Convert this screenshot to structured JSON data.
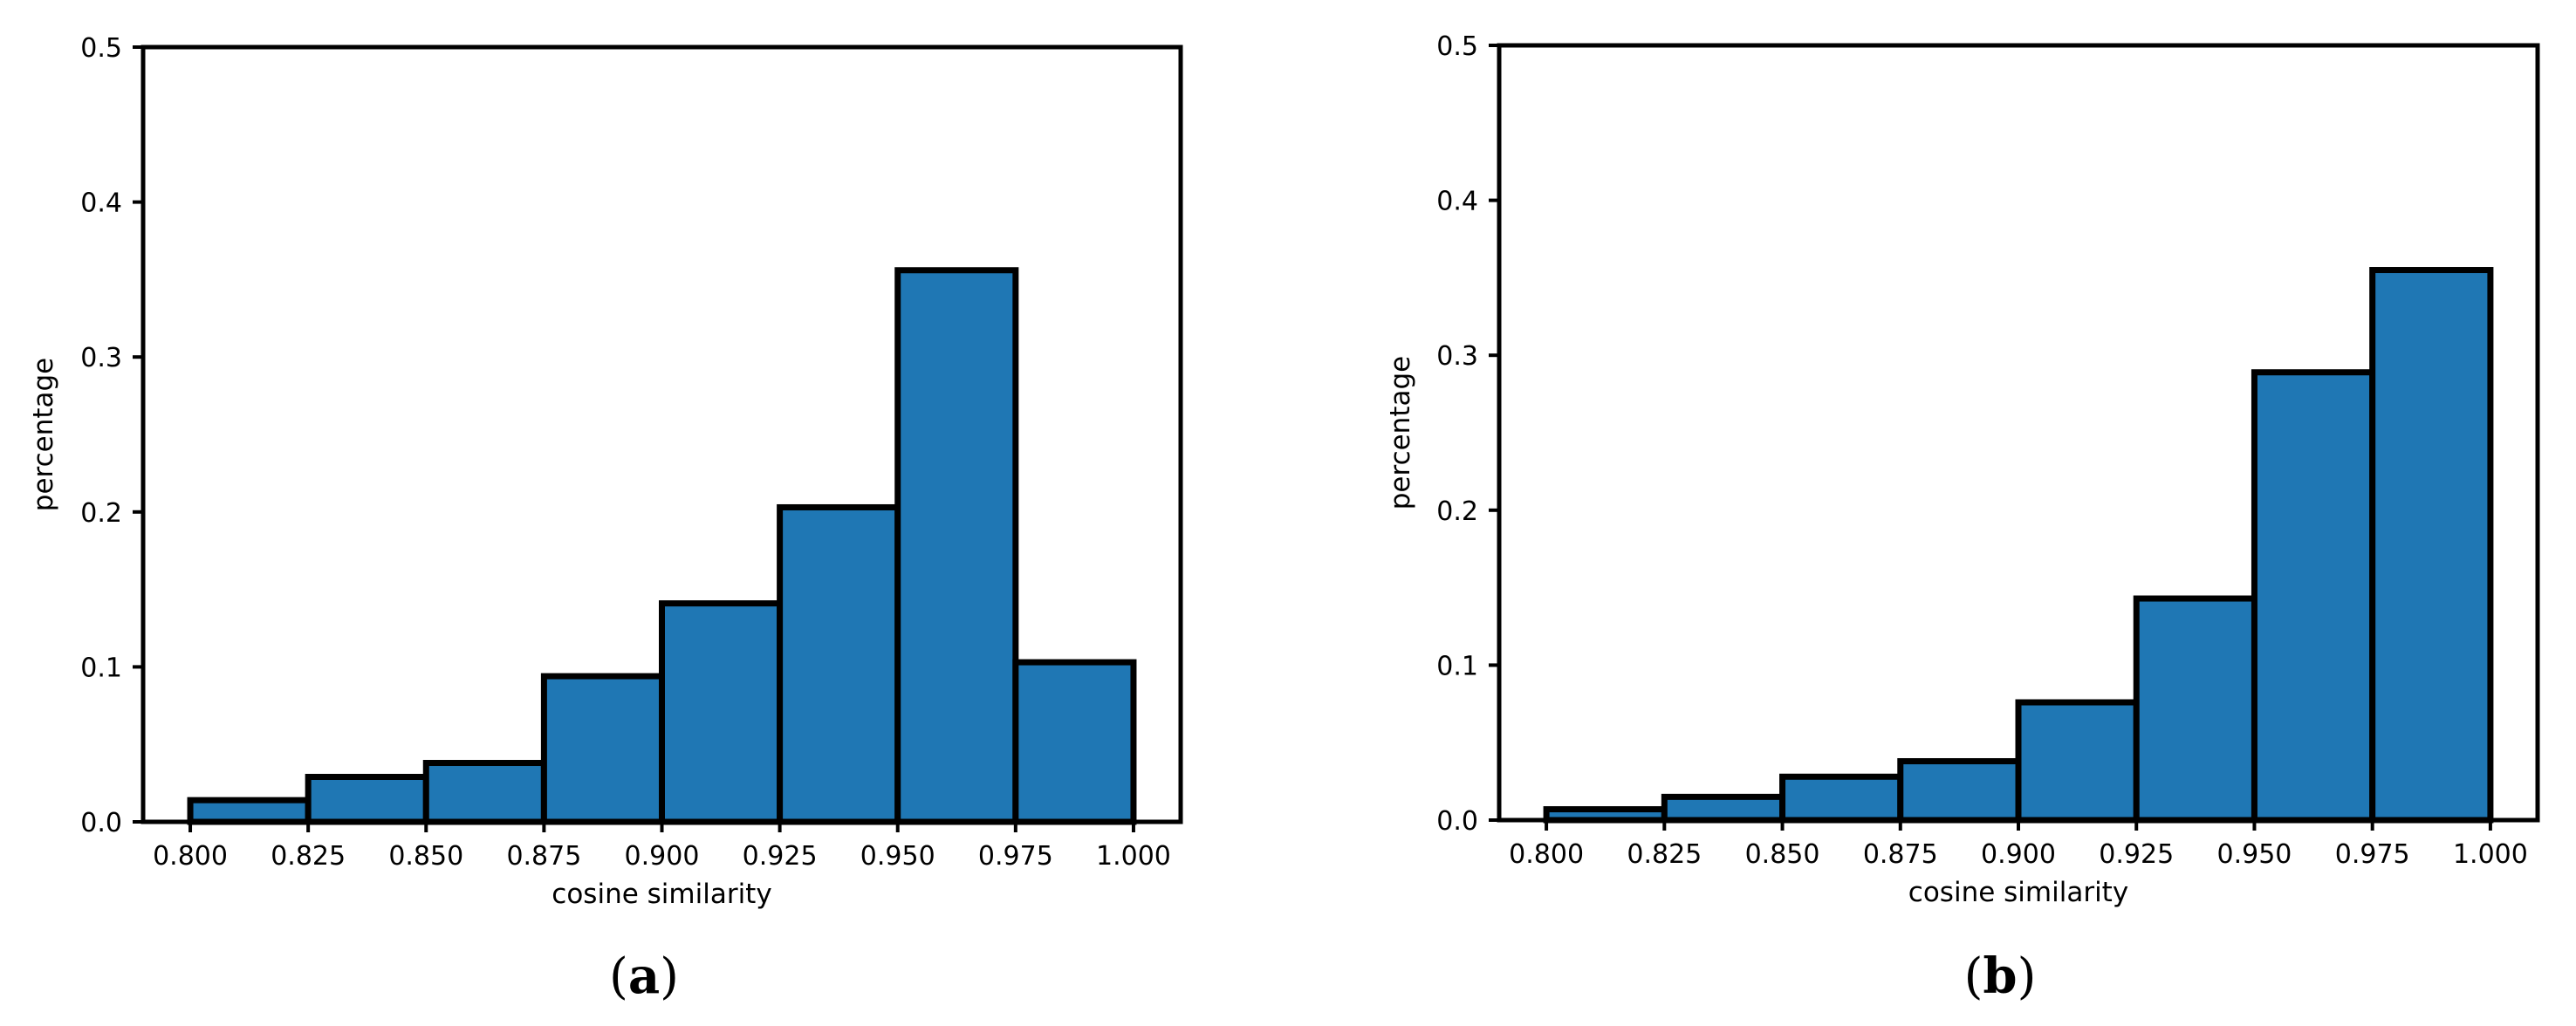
{
  "style": {
    "bar_color": "#1f77b4",
    "edge_color": "#000000",
    "background": "#ffffff"
  },
  "chart_data": [
    {
      "type": "bar",
      "panel_label": "a",
      "title": "",
      "xlabel": "cosine similarity",
      "ylabel": "percentage",
      "xlim": [
        0.79,
        1.01
      ],
      "ylim": [
        0,
        0.5
      ],
      "grid": false,
      "bin_edges": [
        0.8,
        0.825,
        0.85,
        0.875,
        0.9,
        0.925,
        0.95,
        0.975,
        1.0
      ],
      "values": [
        0.014,
        0.029,
        0.038,
        0.094,
        0.141,
        0.203,
        0.356,
        0.103
      ],
      "xticks": [
        "0.800",
        "0.825",
        "0.850",
        "0.875",
        "0.900",
        "0.925",
        "0.950",
        "0.975",
        "1.000"
      ],
      "yticks": [
        "0.0",
        "0.1",
        "0.2",
        "0.3",
        "0.4",
        "0.5"
      ]
    },
    {
      "type": "bar",
      "panel_label": "b",
      "title": "",
      "xlabel": "cosine similarity",
      "ylabel": "percentage",
      "xlim": [
        0.79,
        1.01
      ],
      "ylim": [
        0,
        0.5
      ],
      "grid": false,
      "bin_edges": [
        0.8,
        0.825,
        0.85,
        0.875,
        0.9,
        0.925,
        0.95,
        0.975,
        1.0
      ],
      "values": [
        0.007,
        0.015,
        0.028,
        0.038,
        0.076,
        0.143,
        0.289,
        0.355
      ],
      "xticks": [
        "0.800",
        "0.825",
        "0.850",
        "0.875",
        "0.900",
        "0.925",
        "0.950",
        "0.975",
        "1.000"
      ],
      "yticks": [
        "0.0",
        "0.1",
        "0.2",
        "0.3",
        "0.4",
        "0.5"
      ]
    }
  ]
}
